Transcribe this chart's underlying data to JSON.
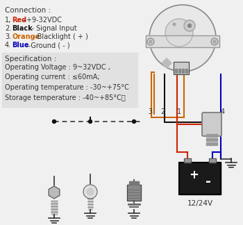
{
  "background_color": "#f0f0f0",
  "connection_title": "Connection :",
  "connections": [
    {
      "num": "1,",
      "label": "Red",
      "color": "#cc2200",
      "desc": "--+9-32VDC"
    },
    {
      "num": "2.",
      "label": "Black",
      "color": "#111111",
      "desc": "-- Signal Input"
    },
    {
      "num": "3.",
      "label": "Orange",
      "color": "#cc6600",
      "desc": "--Blacklight ( + )"
    },
    {
      "num": "4.",
      "label": "Blue",
      "color": "#0000bb",
      "desc": "--Ground ( - )"
    }
  ],
  "spec_title": "Specification :",
  "spec_lines": [
    "Operating Voltage : 9~32VDC ,",
    "Operating current : ≤60mA;",
    "Operating temperature : -30~+75°C",
    "Storage temperature : -40~+85°C。"
  ],
  "wire_colors": {
    "red": "#cc2200",
    "black": "#111111",
    "orange": "#cc6600",
    "blue": "#0000bb",
    "gray": "#555555",
    "dashed": "#333333"
  },
  "wire_labels": [
    "3",
    "2",
    "1",
    "4"
  ],
  "battery_label": "12/24V",
  "spec_bg": "#e0e0e0"
}
